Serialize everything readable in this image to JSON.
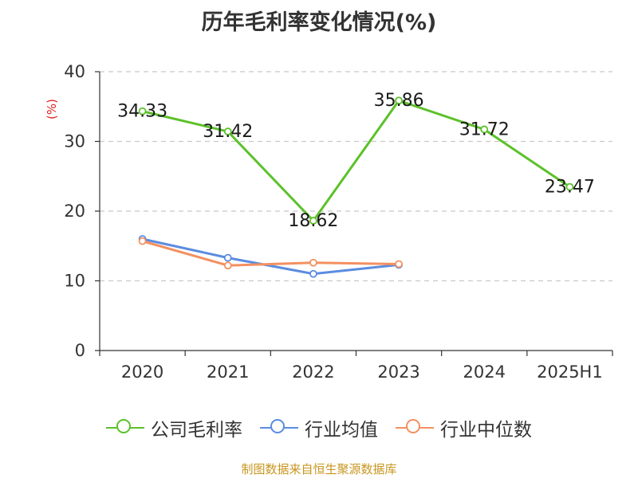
{
  "chart_data": {
    "type": "line",
    "title": "历年毛利率变化情况(%)",
    "ylabel": "(%)",
    "categories": [
      "2020",
      "2021",
      "2022",
      "2023",
      "2024",
      "2025H1"
    ],
    "ylim": [
      0,
      40
    ],
    "yticks": [
      0,
      10,
      20,
      30,
      40
    ],
    "grid": true,
    "legend_position": "bottom",
    "series": [
      {
        "name": "公司毛利率",
        "color": "#5cc12a",
        "show_labels": true,
        "values": [
          34.33,
          31.42,
          18.62,
          35.86,
          31.72,
          23.47
        ]
      },
      {
        "name": "行业均值",
        "color": "#5b8ce0",
        "show_labels": false,
        "values": [
          16.0,
          13.3,
          11.0,
          12.3,
          null,
          null
        ]
      },
      {
        "name": "行业中位数",
        "color": "#f39060",
        "show_labels": false,
        "values": [
          15.7,
          12.2,
          12.6,
          12.4,
          null,
          null
        ]
      }
    ],
    "data_labels": [
      "34.33",
      "31.42",
      "18.62",
      "35.86",
      "31.72",
      "23.47"
    ]
  },
  "source_text": "制图数据来自恒生聚源数据库"
}
